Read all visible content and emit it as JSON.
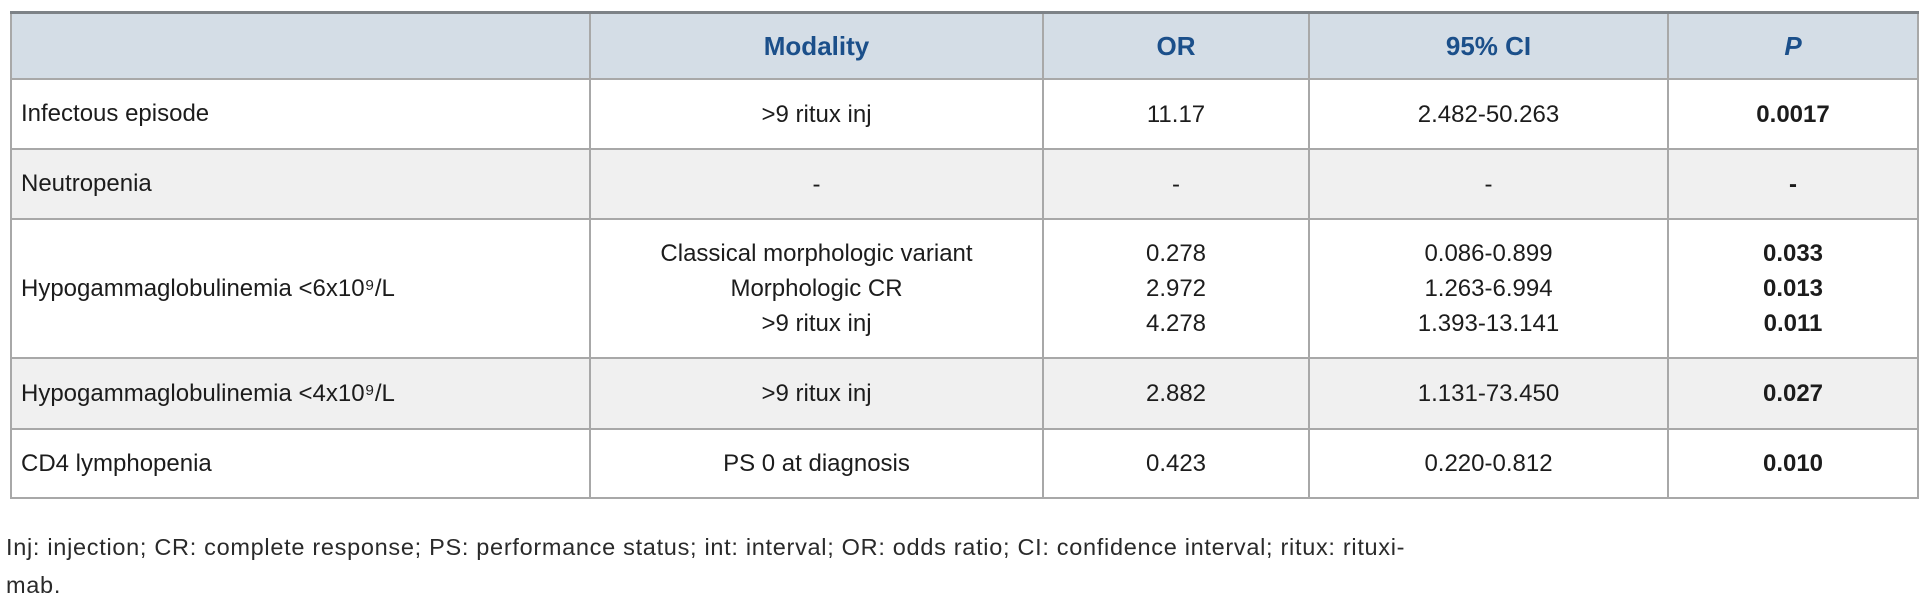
{
  "table": {
    "header": {
      "condition": "",
      "modality": "Modality",
      "or": "OR",
      "ci": "95% CI",
      "p": "P"
    },
    "rows": [
      {
        "condition": "Infectous episode",
        "modality": [
          ">9 ritux inj"
        ],
        "or": [
          "11.17"
        ],
        "ci": [
          "2.482-50.263"
        ],
        "p": [
          "0.0017"
        ]
      },
      {
        "condition": "Neutropenia",
        "modality": [
          "-"
        ],
        "or": [
          "-"
        ],
        "ci": [
          "-"
        ],
        "p": [
          "-"
        ]
      },
      {
        "condition": "Hypogammaglobulinemia <6x10⁹/L",
        "modality": [
          "Classical morphologic variant",
          "Morphologic CR",
          ">9 ritux inj"
        ],
        "or": [
          "0.278",
          "2.972",
          "4.278"
        ],
        "ci": [
          "0.086-0.899",
          "1.263-6.994",
          "1.393-13.141"
        ],
        "p": [
          "0.033",
          "0.013",
          "0.011"
        ]
      },
      {
        "condition": "Hypogammaglobulinemia <4x10⁹/L",
        "modality": [
          ">9 ritux inj"
        ],
        "or": [
          "2.882"
        ],
        "ci": [
          "1.131-73.450"
        ],
        "p": [
          "0.027"
        ]
      },
      {
        "condition": "CD4 lymphopenia",
        "modality": [
          "PS 0 at diagnosis"
        ],
        "or": [
          "0.423"
        ],
        "ci": [
          "0.220-0.812"
        ],
        "p": [
          "0.010"
        ]
      }
    ],
    "footnote": {
      "line1": "Inj: injection; CR: complete response; PS: performance status; int: interval; OR: odds ratio; CI: confidence interval; ritux: rituxi-",
      "line2": "mab."
    },
    "colors": {
      "header_bg": "#d4dde6",
      "header_text": "#1b4f8a",
      "alt_row_bg": "#f0f0f0",
      "border": "#a8a8a8"
    }
  }
}
